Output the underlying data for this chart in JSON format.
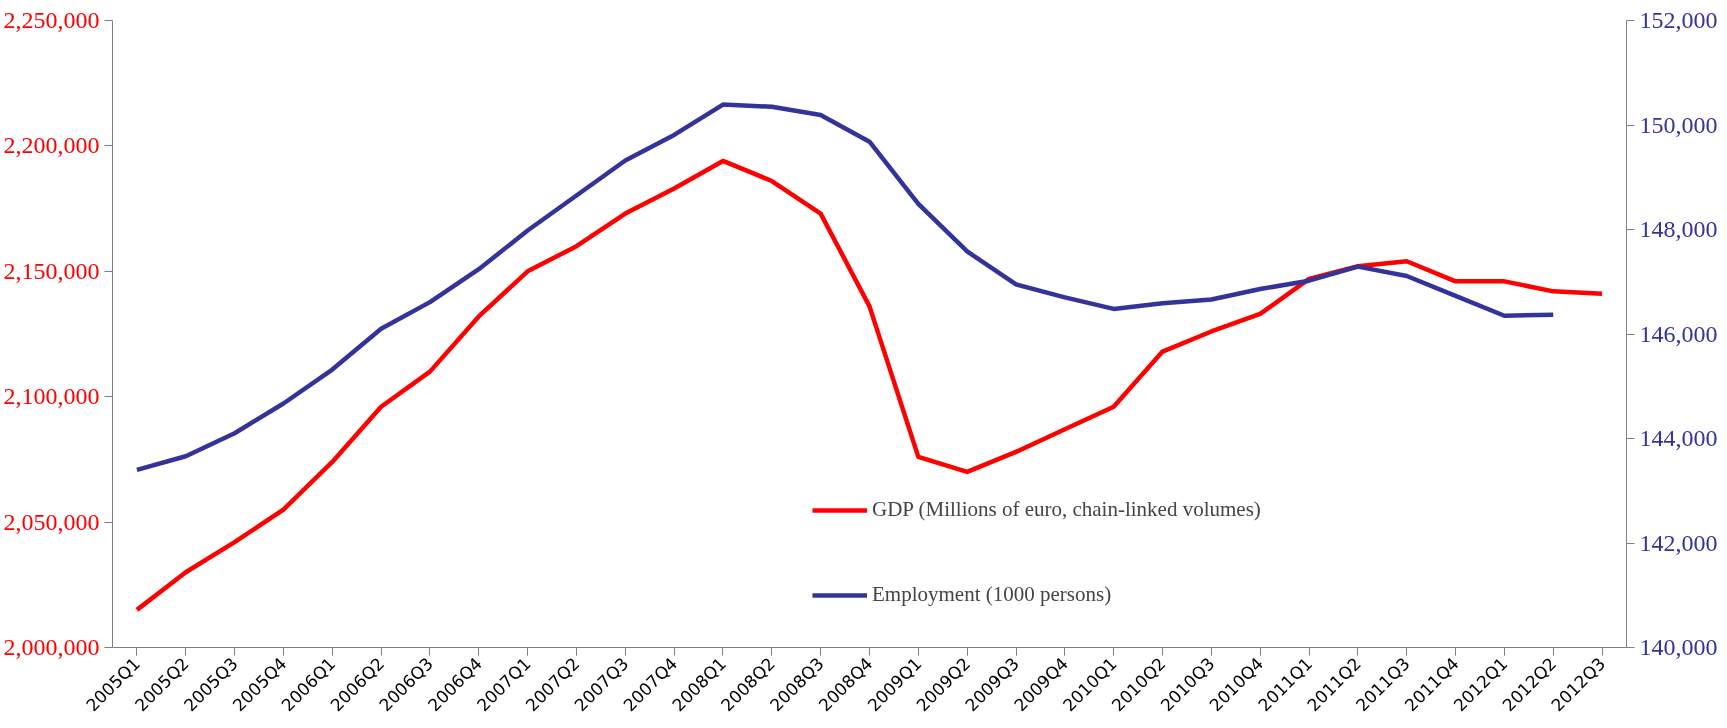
{
  "chart_data": {
    "type": "line",
    "categories": [
      "2005Q1",
      "2005Q2",
      "2005Q3",
      "2005Q4",
      "2006Q1",
      "2006Q2",
      "2006Q3",
      "2006Q4",
      "2007Q1",
      "2007Q2",
      "2007Q3",
      "2007Q4",
      "2008Q1",
      "2008Q2",
      "2008Q3",
      "2008Q4",
      "2009Q1",
      "2009Q2",
      "2009Q3",
      "2009Q4",
      "2010Q1",
      "2010Q2",
      "2010Q3",
      "2010Q4",
      "2011Q1",
      "2011Q2",
      "2011Q3",
      "2011Q4",
      "2012Q1",
      "2012Q2",
      "2012Q3"
    ],
    "series": [
      {
        "name": "GDP (Millions of euro, chain-linked volumes)",
        "color": "#ff0000",
        "values": [
          2015000,
          2030000,
          2042000,
          2055000,
          2074000,
          2096000,
          2110000,
          2132000,
          2150000,
          2160000,
          2173000,
          2183000,
          2194000,
          2186000,
          2173000,
          2136000,
          2076000,
          2070000,
          2078000,
          2087000,
          2096000,
          2118000,
          2126000,
          2133000,
          2147000,
          2152000,
          2154000,
          2146000,
          2146000,
          2142000,
          2141000
        ]
      },
      {
        "name": "Employment (1000 persons)",
        "color": "#333399",
        "axis": "y2",
        "values": [
          143400,
          143660,
          144100,
          144670,
          145320,
          146100,
          146610,
          147240,
          147980,
          148650,
          149320,
          149810,
          150390,
          150350,
          150190,
          149680,
          148490,
          147580,
          146950,
          146700,
          146480,
          146590,
          146660,
          146860,
          147020,
          147290,
          147110,
          146730,
          146350,
          146370,
          null
        ]
      }
    ],
    "ylim": [
      2000000,
      2250000
    ],
    "yticks": [
      {
        "value": 2000000,
        "label": "2,000,000"
      },
      {
        "value": 2050000,
        "label": "2,050,000"
      },
      {
        "value": 2100000,
        "label": "2,100,000"
      },
      {
        "value": 2150000,
        "label": "2,150,000"
      },
      {
        "value": 2200000,
        "label": "2,200,000"
      },
      {
        "value": 2250000,
        "label": "2,250,000"
      }
    ],
    "y2lim": [
      140000,
      152000
    ],
    "y2ticks": [
      {
        "value": 140000,
        "label": "140,000"
      },
      {
        "value": 142000,
        "label": "142,000"
      },
      {
        "value": 144000,
        "label": "144,000"
      },
      {
        "value": 146000,
        "label": "146,000"
      },
      {
        "value": 148000,
        "label": "148,000"
      },
      {
        "value": 150000,
        "label": "150,000"
      },
      {
        "value": 152000,
        "label": "152,000"
      }
    ],
    "grid": false,
    "legend": "bottom",
    "marker": "none",
    "line_style": "solid"
  }
}
